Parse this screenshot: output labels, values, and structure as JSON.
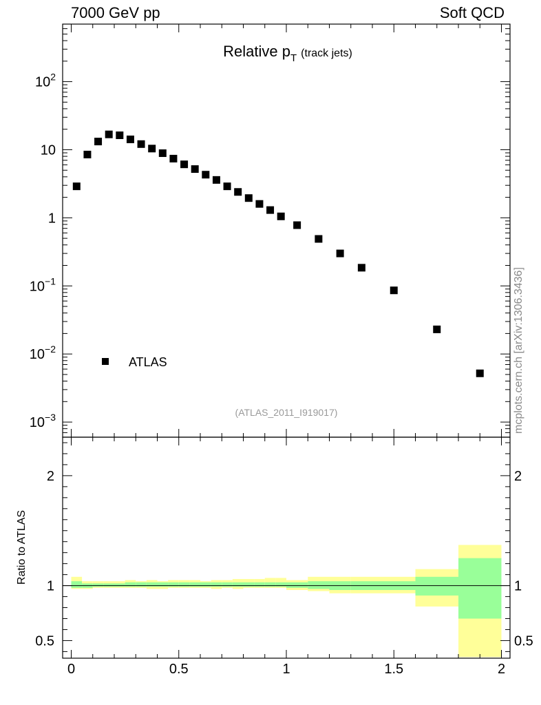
{
  "header": {
    "left": "7000 GeV pp",
    "right": "Soft QCD"
  },
  "side_label": "mcplots.cern.ch [arXiv:1306.3436]",
  "chart_data": [
    {
      "type": "scatter",
      "title": "Relative p",
      "title_sub": "T",
      "title_suffix": "(track jets)",
      "analysis_tag": "(ATLAS_2011_I919017)",
      "y_scale": "log",
      "xlim": [
        -0.04,
        2.04
      ],
      "ylim": [
        0.0006,
        700
      ],
      "x_ticks": [
        0,
        0.5,
        1,
        1.5,
        2
      ],
      "y_ticks": [
        {
          "v": 0.001,
          "base": "10",
          "exp": "−3"
        },
        {
          "v": 0.01,
          "base": "10",
          "exp": "−2"
        },
        {
          "v": 0.1,
          "base": "10",
          "exp": "−1"
        },
        {
          "v": 1,
          "base": "1",
          "exp": ""
        },
        {
          "v": 10,
          "base": "10",
          "exp": ""
        },
        {
          "v": 100,
          "base": "10",
          "exp": "2"
        }
      ],
      "legend": {
        "position": "bottom-left",
        "label": "ATLAS"
      },
      "series": [
        {
          "name": "ATLAS",
          "marker": "square",
          "color": "#000000",
          "x": [
            0.025,
            0.075,
            0.125,
            0.175,
            0.225,
            0.275,
            0.325,
            0.375,
            0.425,
            0.475,
            0.525,
            0.575,
            0.625,
            0.675,
            0.725,
            0.775,
            0.825,
            0.875,
            0.925,
            0.975,
            1.05,
            1.15,
            1.25,
            1.35,
            1.5,
            1.7,
            1.9
          ],
          "y": [
            2.9,
            8.5,
            13.2,
            16.8,
            16.3,
            14.2,
            12.1,
            10.4,
            8.9,
            7.4,
            6.1,
            5.2,
            4.3,
            3.6,
            2.9,
            2.4,
            1.95,
            1.6,
            1.3,
            1.05,
            0.78,
            0.49,
            0.3,
            0.185,
            0.086,
            0.023,
            0.0052
          ]
        }
      ]
    },
    {
      "type": "area",
      "ylabel": "Ratio to ATLAS",
      "xlim": [
        -0.04,
        2.04
      ],
      "ylim": [
        0.34,
        2.35
      ],
      "x_ticks": [
        0,
        0.5,
        1,
        1.5,
        2
      ],
      "x_tick_labels": [
        "0",
        "0.5",
        "1",
        "1.5",
        "2"
      ],
      "y_ticks": [
        0.5,
        1,
        2
      ],
      "y_tick_labels": [
        "0.5",
        "1",
        "2"
      ],
      "reference_line": 1,
      "bands": {
        "bin_edges": [
          0,
          0.05,
          0.1,
          0.15,
          0.2,
          0.25,
          0.3,
          0.35,
          0.4,
          0.45,
          0.5,
          0.55,
          0.6,
          0.65,
          0.7,
          0.75,
          0.8,
          0.85,
          0.9,
          0.95,
          1.0,
          1.1,
          1.2,
          1.3,
          1.4,
          1.6,
          1.8,
          2.0
        ],
        "outer_color": "#ffff99",
        "inner_color": "#99ff99",
        "outer_lo": [
          0.97,
          0.97,
          0.98,
          0.98,
          0.98,
          0.98,
          0.98,
          0.97,
          0.97,
          0.98,
          0.98,
          0.98,
          0.98,
          0.97,
          0.98,
          0.97,
          0.98,
          0.98,
          0.98,
          0.98,
          0.96,
          0.95,
          0.93,
          0.93,
          0.93,
          0.81,
          0.35
        ],
        "outer_hi": [
          1.08,
          1.04,
          1.04,
          1.04,
          1.04,
          1.05,
          1.04,
          1.05,
          1.04,
          1.05,
          1.05,
          1.05,
          1.04,
          1.05,
          1.05,
          1.06,
          1.06,
          1.06,
          1.07,
          1.07,
          1.05,
          1.08,
          1.08,
          1.08,
          1.08,
          1.15,
          1.37
        ],
        "inner_lo": [
          0.98,
          0.98,
          0.99,
          0.99,
          0.99,
          0.99,
          0.99,
          0.99,
          0.99,
          0.99,
          0.99,
          0.99,
          0.99,
          0.99,
          0.99,
          0.99,
          0.99,
          0.99,
          0.99,
          0.99,
          0.98,
          0.97,
          0.96,
          0.96,
          0.96,
          0.91,
          0.7
        ],
        "inner_hi": [
          1.04,
          1.02,
          1.02,
          1.02,
          1.02,
          1.03,
          1.03,
          1.03,
          1.03,
          1.03,
          1.03,
          1.03,
          1.03,
          1.03,
          1.03,
          1.03,
          1.03,
          1.03,
          1.03,
          1.03,
          1.03,
          1.04,
          1.04,
          1.04,
          1.04,
          1.08,
          1.25
        ]
      }
    }
  ]
}
